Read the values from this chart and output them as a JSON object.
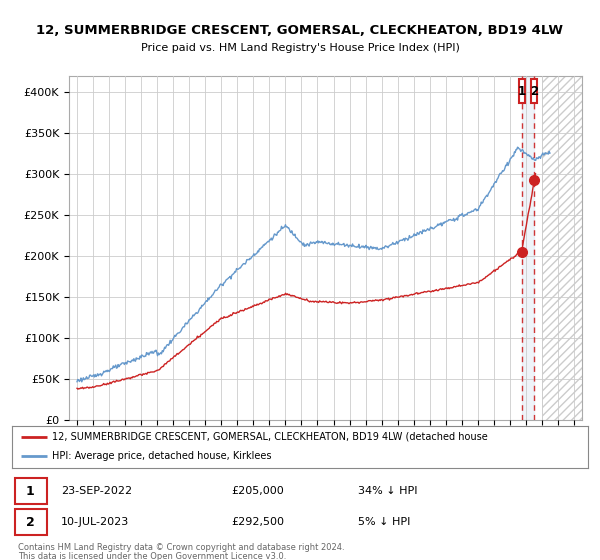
{
  "title": "12, SUMMERBRIDGE CRESCENT, GOMERSAL, CLECKHEATON, BD19 4LW",
  "subtitle": "Price paid vs. HM Land Registry's House Price Index (HPI)",
  "yticks": [
    0,
    50000,
    100000,
    150000,
    200000,
    250000,
    300000,
    350000,
    400000
  ],
  "ytick_labels": [
    "£0",
    "£50K",
    "£100K",
    "£150K",
    "£200K",
    "£250K",
    "£300K",
    "£350K",
    "£400K"
  ],
  "xlim_start": 1994.5,
  "xlim_end": 2026.5,
  "ylim": [
    0,
    420000
  ],
  "hpi_color": "#6699cc",
  "price_color": "#cc2222",
  "marker1_date_x": 2022.73,
  "marker1_price": 205000,
  "marker1_label": "23-SEP-2022",
  "marker1_pct": "34% ↓ HPI",
  "marker2_date_x": 2023.53,
  "marker2_price": 292500,
  "marker2_label": "10-JUL-2023",
  "marker2_pct": "5% ↓ HPI",
  "legend_line1": "12, SUMMERBRIDGE CRESCENT, GOMERSAL, CLECKHEATON, BD19 4LW (detached house",
  "legend_line2": "HPI: Average price, detached house, Kirklees",
  "footer1": "Contains HM Land Registry data © Crown copyright and database right 2024.",
  "footer2": "This data is licensed under the Open Government Licence v3.0.",
  "bg_color": "#ffffff",
  "grid_color": "#cccccc",
  "future_cutoff": 2024.0,
  "xticks": [
    1995,
    1996,
    1997,
    1998,
    1999,
    2000,
    2001,
    2002,
    2003,
    2004,
    2005,
    2006,
    2007,
    2008,
    2009,
    2010,
    2011,
    2012,
    2013,
    2014,
    2015,
    2016,
    2017,
    2018,
    2019,
    2020,
    2021,
    2022,
    2023,
    2024,
    2025,
    2026
  ]
}
